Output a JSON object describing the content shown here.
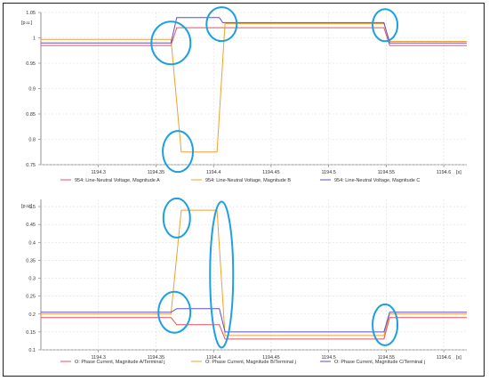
{
  "chart_data": [
    {
      "type": "line",
      "unit_y": "[p.u.]",
      "unit_x": "[s]",
      "xlim": [
        1194.25,
        1194.62
      ],
      "ylim": [
        0.75,
        1.05
      ],
      "xticks": [
        1194.3,
        1194.35,
        1194.4,
        1194.45,
        1194.5,
        1194.55,
        1194.6
      ],
      "xtick_labels": [
        "1194.3",
        "1194.35",
        "1194.4",
        "1194.45",
        "1194.5",
        "1194.55",
        "1194.6"
      ],
      "yticks": [
        0.75,
        0.8,
        0.85,
        0.9,
        0.95,
        1.0,
        1.05
      ],
      "ytick_labels": [
        "0.75",
        "0.8",
        "0.85",
        "0.9",
        "0.95",
        "1",
        "1.05"
      ],
      "grid": true,
      "legend": "bottom",
      "series": [
        {
          "name": "954: Line-Neutral Voltage, Magnitude A",
          "color": "#e8505b",
          "x": [
            1194.25,
            1194.363,
            1194.368,
            1194.405,
            1194.407,
            1194.548,
            1194.553,
            1194.62
          ],
          "y": [
            0.985,
            0.985,
            1.02,
            1.02,
            1.02,
            1.02,
            0.985,
            0.985
          ]
        },
        {
          "name": "954: Line-Neutral Voltage, Magnitude B",
          "color": "#f0a030",
          "x": [
            1194.25,
            1194.363,
            1194.372,
            1194.403,
            1194.41,
            1194.548,
            1194.553,
            1194.62
          ],
          "y": [
            0.997,
            0.997,
            0.775,
            0.775,
            1.028,
            1.028,
            0.993,
            0.993
          ]
        },
        {
          "name": "954: Line-Neutral Voltage, Magnitude C",
          "color": "#5a4fd0",
          "x": [
            1194.25,
            1194.363,
            1194.368,
            1194.405,
            1194.408,
            1194.548,
            1194.553,
            1194.62
          ],
          "y": [
            0.99,
            0.99,
            1.04,
            1.04,
            1.03,
            1.03,
            0.99,
            0.99
          ]
        }
      ],
      "annotations": [
        {
          "shape": "ellipse",
          "color": "#1ea0e0",
          "cx": 1194.363,
          "cy": 0.99
        },
        {
          "shape": "ellipse",
          "color": "#1ea0e0",
          "cx": 1194.369,
          "cy": 0.776
        },
        {
          "shape": "ellipse",
          "color": "#1ea0e0",
          "cx": 1194.407,
          "cy": 1.027
        },
        {
          "shape": "ellipse",
          "color": "#1ea0e0",
          "cx": 1194.549,
          "cy": 1.025
        }
      ]
    },
    {
      "type": "line",
      "unit_y": "[p.u.]",
      "unit_x": "[s]",
      "xlim": [
        1194.25,
        1194.62
      ],
      "ylim": [
        0.1,
        0.52
      ],
      "xticks": [
        1194.3,
        1194.35,
        1194.4,
        1194.45,
        1194.5,
        1194.55,
        1194.6
      ],
      "xtick_labels": [
        "1194.3",
        "1194.35",
        "1194.4",
        "1194.45",
        "1194.5",
        "1194.55",
        "1194.6"
      ],
      "yticks": [
        0.1,
        0.15,
        0.2,
        0.25,
        0.3,
        0.35,
        0.4,
        0.45,
        0.5
      ],
      "ytick_labels": [
        "0.1",
        "0.15",
        "0.2",
        "0.25",
        "0.3",
        "0.35",
        "0.4",
        "0.45",
        "0.5"
      ],
      "grid": true,
      "legend": "bottom",
      "series": [
        {
          "name": "O: Phase Current, Magnitude A/Terminal j",
          "color": "#e8505b",
          "x": [
            1194.25,
            1194.363,
            1194.368,
            1194.405,
            1194.41,
            1194.548,
            1194.553,
            1194.62
          ],
          "y": [
            0.19,
            0.19,
            0.17,
            0.17,
            0.13,
            0.13,
            0.19,
            0.19
          ]
        },
        {
          "name": "O: Phase Current, Magnitude B/Terminal j",
          "color": "#f0a030",
          "x": [
            1194.25,
            1194.363,
            1194.372,
            1194.403,
            1194.41,
            1194.548,
            1194.553,
            1194.62
          ],
          "y": [
            0.2,
            0.2,
            0.49,
            0.49,
            0.14,
            0.14,
            0.2,
            0.2
          ]
        },
        {
          "name": "O: Phase Current, Magnitude C/Terminal j",
          "color": "#5a4fd0",
          "x": [
            1194.25,
            1194.363,
            1194.368,
            1194.405,
            1194.41,
            1194.548,
            1194.553,
            1194.62
          ],
          "y": [
            0.205,
            0.205,
            0.215,
            0.215,
            0.15,
            0.15,
            0.205,
            0.205
          ]
        }
      ],
      "annotations": [
        {
          "shape": "ellipse",
          "color": "#1ea0e0",
          "cx": 1194.368,
          "cy": 0.468
        },
        {
          "shape": "ellipse",
          "color": "#1ea0e0",
          "cx": 1194.366,
          "cy": 0.205
        },
        {
          "shape": "ellipse",
          "color": "#1ea0e0",
          "cx": 1194.407,
          "cy": 0.31
        },
        {
          "shape": "ellipse",
          "color": "#1ea0e0",
          "cx": 1194.549,
          "cy": 0.17
        }
      ]
    }
  ]
}
